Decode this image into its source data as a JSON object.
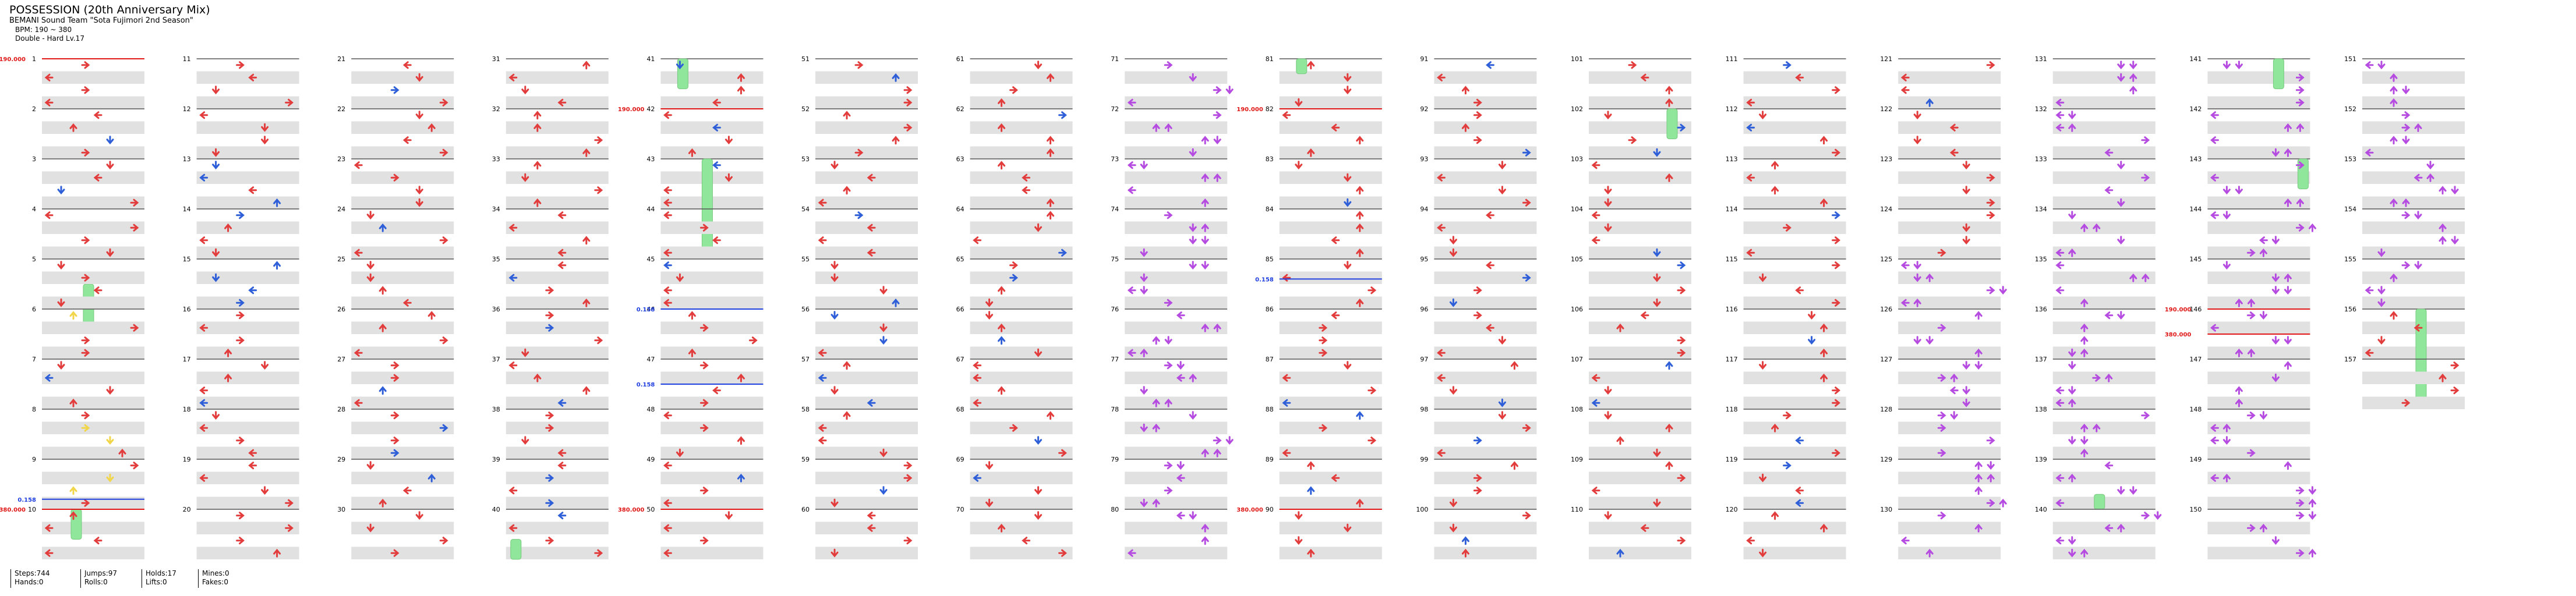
{
  "song": {
    "title": "POSSESSION (20th Anniversary Mix)",
    "artist": "BEMANI Sound Team \"Sota Fujimori 2nd Season\"",
    "bpm_text": "BPM: 190 ~ 380",
    "difficulty": "Double - Hard  Lv.17"
  },
  "colors": {
    "red": "#e23c3c",
    "blue": "#2f5fd8",
    "yellow": "#f2d64a",
    "purple": "#b54be0",
    "hold": "#90e69a",
    "bpm_marker": "#e01818",
    "stop_marker": "#2040e0"
  },
  "measures": {
    "first": 1,
    "last": 157,
    "columns": 16,
    "per_column": 10
  },
  "bpm_changes": [
    {
      "measure": 1,
      "label": "190.000"
    },
    {
      "measure": 10,
      "label": "380.000"
    },
    {
      "measure": 42,
      "label": "190.000"
    },
    {
      "measure": 50,
      "label": "380.000"
    },
    {
      "measure": 82,
      "label": "190.000"
    },
    {
      "measure": 90,
      "label": "380.000"
    },
    {
      "measure": 146,
      "label": "190.000"
    },
    {
      "measure": 146.5,
      "label": "380.000"
    }
  ],
  "stops": [
    {
      "measure": 9.8,
      "label": "0.158"
    },
    {
      "measure": 46,
      "label": "0.158"
    },
    {
      "measure": 47.5,
      "label": "0.158"
    },
    {
      "measure": 85.4,
      "label": "0.158"
    }
  ],
  "stats": [
    {
      "label": "Steps:744",
      "label2": "Hands:0"
    },
    {
      "label": "Jumps:97",
      "label2": "Rolls:0"
    },
    {
      "label": "Holds:17",
      "label2": "Lifts:0"
    },
    {
      "label": "Mines:0",
      "label2": "Fakes:0"
    }
  ]
}
